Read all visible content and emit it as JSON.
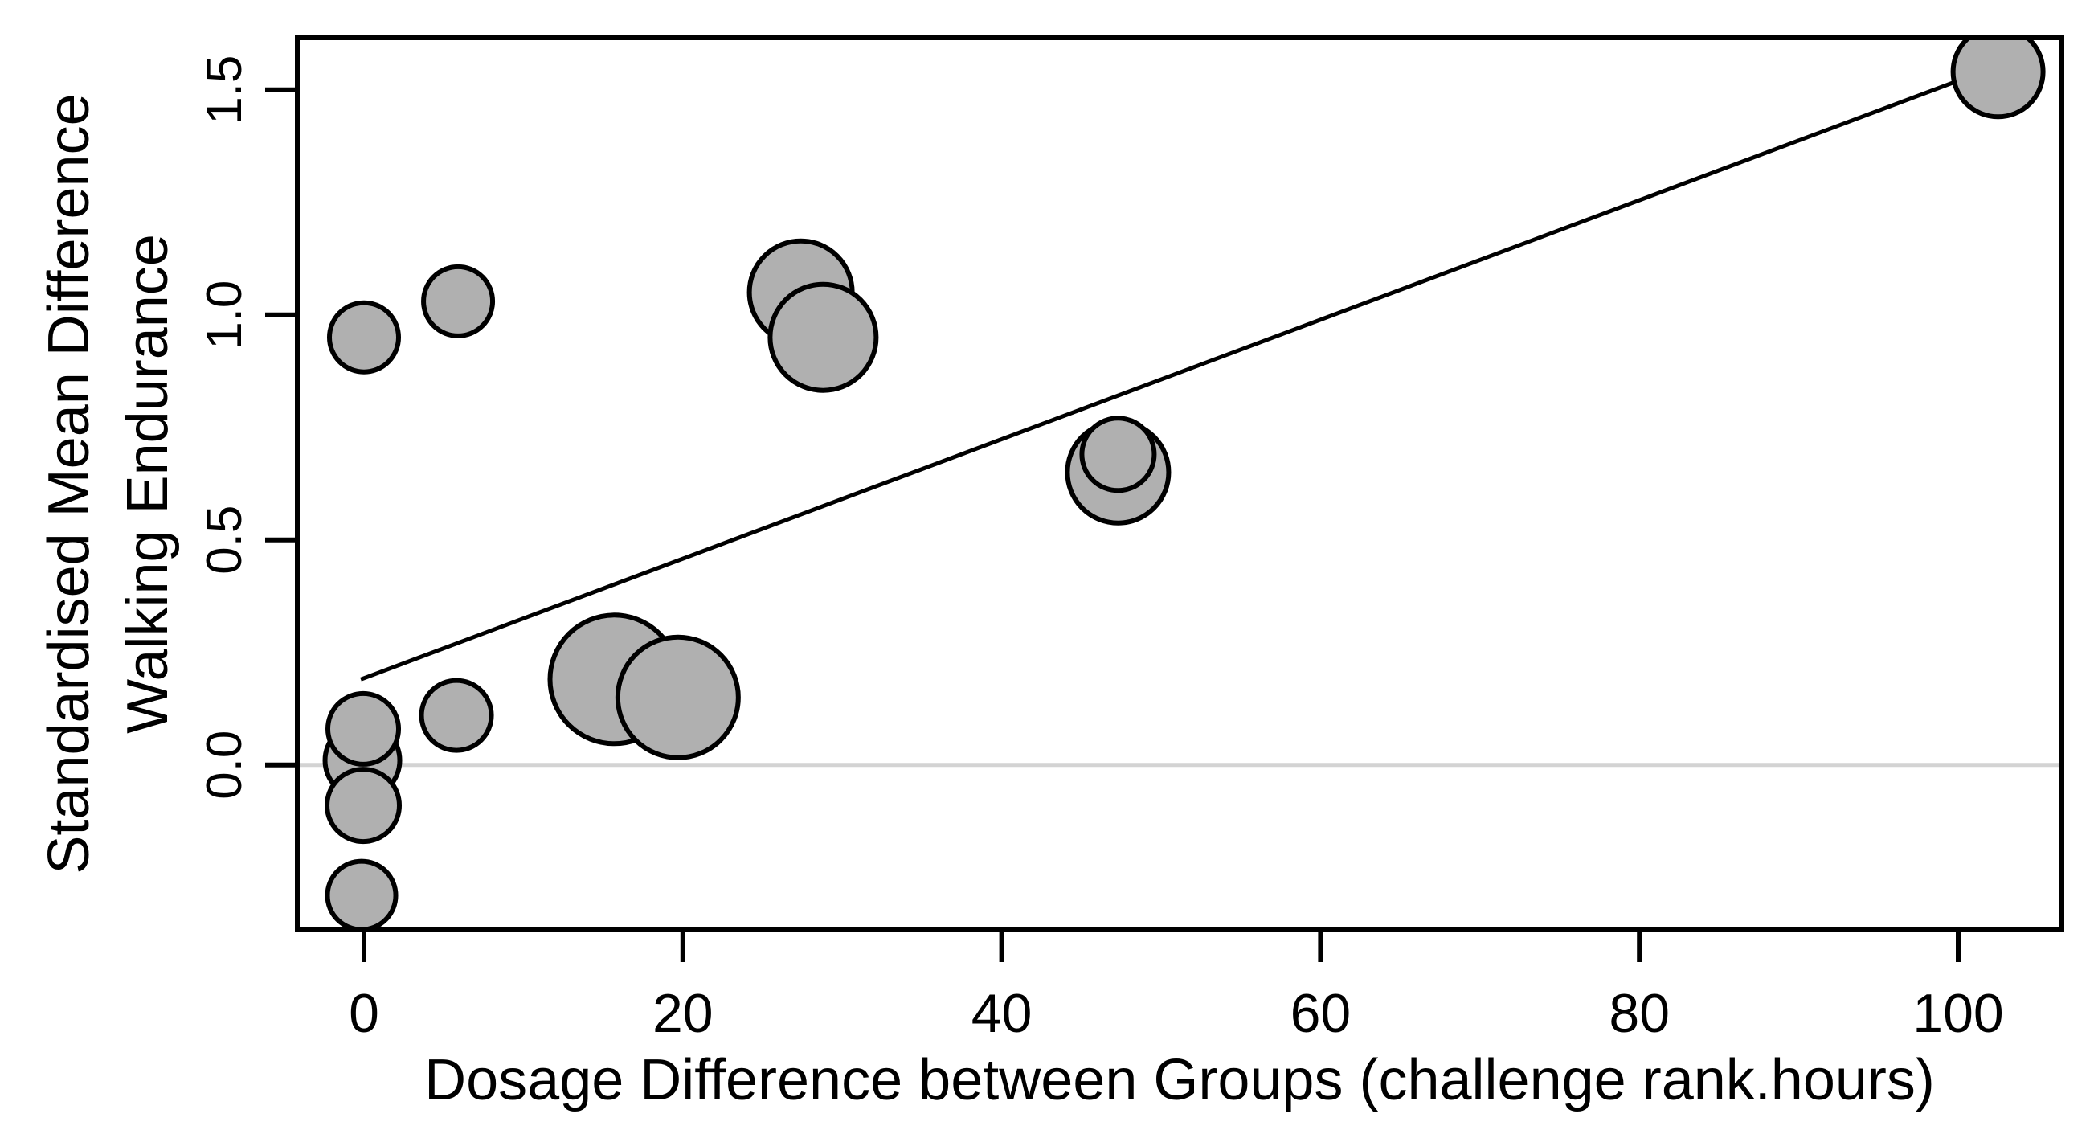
{
  "chart_data": {
    "type": "scatter",
    "subtype": "bubble-meta-regression",
    "title": "",
    "xlabel": "Dosage Difference between Groups (challenge rank.hours)",
    "ylabel_lines": [
      "Standardised Mean Difference",
      "Walking Endurance"
    ],
    "x_ticks": [
      0,
      20,
      40,
      60,
      80,
      100
    ],
    "y_ticks": [
      0.0,
      0.5,
      1.0,
      1.5
    ],
    "xlim": [
      -4.2,
      106.5
    ],
    "ylim": [
      -0.37,
      1.62
    ],
    "grid": false,
    "legend": "none",
    "zero_line": {
      "y": 0,
      "color": "#d3d3d3"
    },
    "regression_line": {
      "x1": -0.2,
      "y1": 0.19,
      "x2": 103.0,
      "y2": 1.56,
      "color": "#000000"
    },
    "bubble_style": {
      "fill": "#b0b0b0",
      "stroke": "#000000"
    },
    "points_note": "x,y in data units; r = bubble radius in canvas px (2606x1401); array order = draw order back-to-front",
    "points": [
      {
        "x": -0.1,
        "y": 0.01,
        "r": 46.5
      },
      {
        "x": -0.05,
        "y": -0.09,
        "r": 45
      },
      {
        "x": -0.05,
        "y": 0.08,
        "r": 44
      },
      {
        "x": -0.15,
        "y": -0.29,
        "r": 42.5
      },
      {
        "x": 15.7,
        "y": 0.19,
        "r": 80
      },
      {
        "x": 19.7,
        "y": 0.15,
        "r": 75
      },
      {
        "x": 0.0,
        "y": 0.95,
        "r": 43
      },
      {
        "x": 5.9,
        "y": 1.03,
        "r": 43
      },
      {
        "x": 5.8,
        "y": 0.11,
        "r": 43.5
      },
      {
        "x": 27.4,
        "y": 1.05,
        "r": 64
      },
      {
        "x": 28.8,
        "y": 0.95,
        "r": 66
      },
      {
        "x": 47.3,
        "y": 0.65,
        "r": 63
      },
      {
        "x": 47.3,
        "y": 0.69,
        "r": 45
      },
      {
        "x": 102.5,
        "y": 1.54,
        "r": 56
      }
    ]
  }
}
